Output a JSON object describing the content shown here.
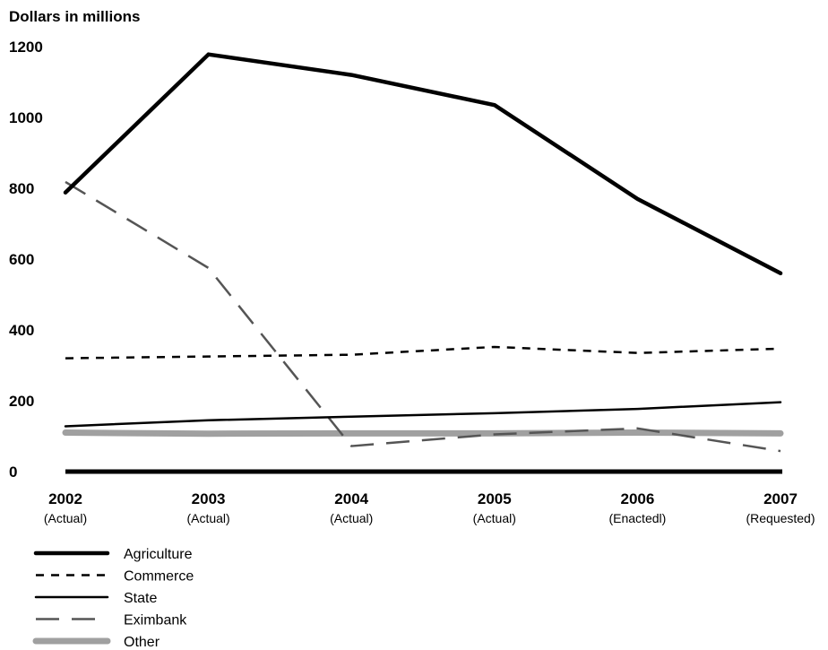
{
  "chart_data": {
    "type": "line",
    "title": "",
    "ylabel": "Dollars in millions",
    "xlabel": "",
    "ylim": [
      0,
      1200
    ],
    "yticks": [
      0,
      200,
      400,
      600,
      800,
      1000,
      1200
    ],
    "categories": [
      {
        "year": "2002",
        "status": "(Actual)"
      },
      {
        "year": "2003",
        "status": "(Actual)"
      },
      {
        "year": "2004",
        "status": "(Actual)"
      },
      {
        "year": "2005",
        "status": "(Actual)"
      },
      {
        "year": "2006",
        "status": "(Enactedl)"
      },
      {
        "year": "2007",
        "status": "(Requested)"
      }
    ],
    "series": [
      {
        "name": "Agriculture",
        "values": [
          788,
          1178,
          1120,
          1035,
          770,
          560
        ],
        "color": "#000000",
        "style": "thick-solid"
      },
      {
        "name": "Commerce",
        "values": [
          320,
          325,
          330,
          352,
          335,
          347
        ],
        "color": "#000000",
        "style": "short-dash"
      },
      {
        "name": "State",
        "values": [
          128,
          145,
          155,
          165,
          177,
          196
        ],
        "color": "#000000",
        "style": "thin-solid"
      },
      {
        "name": "Eximbank",
        "values": [
          818,
          575,
          72,
          105,
          122,
          58
        ],
        "color": "#555555",
        "style": "long-dash"
      },
      {
        "name": "Other",
        "values": [
          110,
          107,
          108,
          108,
          110,
          108
        ],
        "color": "#a0a0a0",
        "style": "thick-gray"
      }
    ],
    "grid": false,
    "legend_position": "bottom-left"
  }
}
